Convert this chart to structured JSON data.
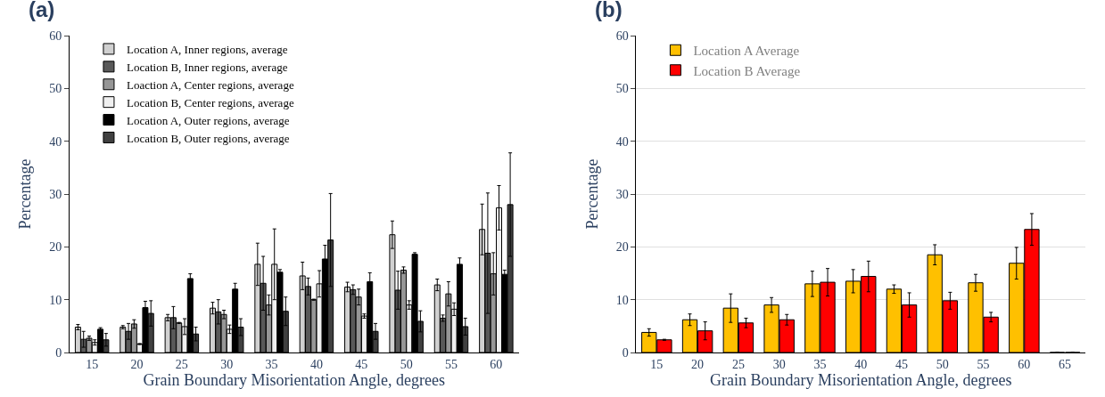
{
  "chart_data": [
    {
      "type": "bar",
      "title": "(a)",
      "xlabel": "Grain Boundary Misorientation Angle, degrees",
      "ylabel": "Percentage",
      "categories": [
        "15",
        "20",
        "25",
        "30",
        "35",
        "40",
        "45",
        "50",
        "55",
        "60"
      ],
      "ylim": [
        0,
        60
      ],
      "yticks": [
        0,
        10,
        20,
        30,
        40,
        50,
        60
      ],
      "grid": false,
      "legend": "top left",
      "series": [
        {
          "name": "Location A, Inner regions, average",
          "color": "#d0d0d0",
          "values": [
            4.8,
            4.8,
            6.6,
            8.4,
            16.7,
            14.5,
            12.4,
            22.3,
            12.8,
            23.3
          ],
          "errors": [
            0.5,
            0.3,
            0.6,
            1.1,
            4.0,
            2.6,
            0.9,
            2.6,
            1.1,
            4.8
          ]
        },
        {
          "name": "Location B, Inner regions, average",
          "color": "#595959",
          "values": [
            2.5,
            4.0,
            6.6,
            7.7,
            13.1,
            12.5,
            11.9,
            11.8,
            6.5,
            18.8
          ],
          "errors": [
            1.5,
            1.5,
            2.1,
            2.3,
            5.1,
            1.6,
            0.9,
            3.6,
            0.6,
            11.4
          ]
        },
        {
          "name": "Loaction A, Center regions, average",
          "color": "#969696",
          "values": [
            2.7,
            5.4,
            5.6,
            7.2,
            9.0,
            10.0,
            10.5,
            15.6,
            11.1,
            14.9
          ],
          "errors": [
            0.4,
            0.8,
            0.1,
            0.8,
            1.9,
            0.1,
            1.5,
            0.6,
            2.3,
            4.0
          ]
        },
        {
          "name": "Location B, Center regions, average",
          "color": "#f0f0f0",
          "values": [
            1.9,
            1.6,
            4.9,
            4.4,
            16.7,
            13.0,
            6.9,
            9.0,
            8.2,
            27.4
          ],
          "errors": [
            0.5,
            0.1,
            1.5,
            0.8,
            6.7,
            2.5,
            0.4,
            0.8,
            1.2,
            4.2
          ]
        },
        {
          "name": "Location A, Outer regions, average",
          "color": "#000000",
          "values": [
            4.4,
            8.5,
            14.0,
            12.0,
            15.2,
            17.7,
            13.4,
            18.6,
            16.7,
            14.8
          ],
          "errors": [
            0.3,
            1.2,
            0.9,
            1.1,
            0.5,
            2.6,
            1.7,
            0.3,
            1.2,
            0.8
          ]
        },
        {
          "name": "Location B, Outer regions, average",
          "color": "#404040",
          "values": [
            2.4,
            7.4,
            3.5,
            4.8,
            7.8,
            21.3,
            4.0,
            5.9,
            4.9,
            28.0
          ],
          "errors": [
            1.2,
            2.4,
            1.3,
            1.6,
            2.7,
            8.8,
            1.5,
            2.0,
            1.6,
            9.8
          ]
        }
      ]
    },
    {
      "type": "bar",
      "title": "(b)",
      "xlabel": "Grain Boundary Misorientation Angle, degrees",
      "ylabel": "Percentage",
      "categories": [
        "15",
        "20",
        "25",
        "30",
        "35",
        "40",
        "45",
        "50",
        "55",
        "60",
        "65"
      ],
      "ylim": [
        0,
        60
      ],
      "yticks": [
        0,
        10,
        20,
        30,
        40,
        50,
        60
      ],
      "grid": "y",
      "legend": "top left",
      "series": [
        {
          "name": "Location A Average",
          "color": "#ffc000",
          "values": [
            3.8,
            6.2,
            8.4,
            9.0,
            13.0,
            13.5,
            12.0,
            18.5,
            13.2,
            16.9,
            0
          ],
          "errors": [
            0.7,
            1.1,
            2.7,
            1.4,
            2.4,
            2.2,
            0.8,
            1.9,
            1.6,
            3.0,
            0
          ]
        },
        {
          "name": "Location B Average",
          "color": "#ff0000",
          "values": [
            2.4,
            4.1,
            5.6,
            6.2,
            13.3,
            14.4,
            9.0,
            9.8,
            6.7,
            23.3,
            0
          ],
          "errors": [
            0.1,
            1.7,
            0.9,
            1.0,
            2.6,
            2.9,
            2.3,
            1.6,
            0.9,
            3.0,
            0
          ]
        }
      ]
    }
  ]
}
